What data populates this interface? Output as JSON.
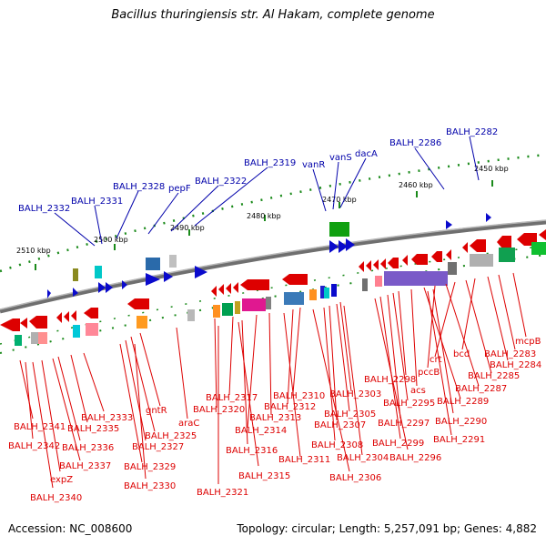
{
  "title": "Bacillus thuringiensis str. Al Hakam, complete genome",
  "accession": "Accession: NC_008600",
  "info": "Topology: circular; Length: 5,257,091 bp; Genes: 4,882",
  "scale_labels": [
    "2450 kbp",
    "2460 kbp",
    "2470 kbp",
    "2480 kbp",
    "2490 kbp",
    "2500 kbp",
    "2510 kbp"
  ],
  "top_labels": [
    "BALH_2332",
    "BALH_2331",
    "BALH_2328",
    "pepF",
    "BALH_2322",
    "BALH_2319",
    "vanR",
    "vanS",
    "dacA",
    "BALH_2286",
    "BALH_2282"
  ],
  "bottom_labels": [
    "mcpB",
    "BALH_2283",
    "BALH_2284",
    "bcd",
    "BALH_2285",
    "crt",
    "BALH_2287",
    "pccB",
    "BALH_2289",
    "acs",
    "BALH_2298",
    "BALH_2295",
    "BALH_2290",
    "BALH_2297",
    "BALH_2291",
    "BALH_2299",
    "BALH_2296",
    "BALH_2303",
    "BALH_2305",
    "BALH_2310",
    "BALH_2307",
    "BALH_2312",
    "BALH_2308",
    "BALH_2304",
    "BALH_2317",
    "BALH_2313",
    "BALH_2320",
    "BALH_2306",
    "BALH_2311",
    "BALH_2314",
    "gntR",
    "araC",
    "BALH_2325",
    "BALH_2316",
    "BALH_2315",
    "BALH_2327",
    "BALH_2329",
    "BALH_2333",
    "BALH_2335",
    "BALH_2341",
    "BALH_2336",
    "BALH_2342",
    "BALH_2337",
    "BALH_2321",
    "BALH_2330",
    "expZ",
    "BALH_2340"
  ],
  "colors": {
    "forward": "#0a0acc",
    "reverse": "#dd0000",
    "backbone": "#888888"
  }
}
